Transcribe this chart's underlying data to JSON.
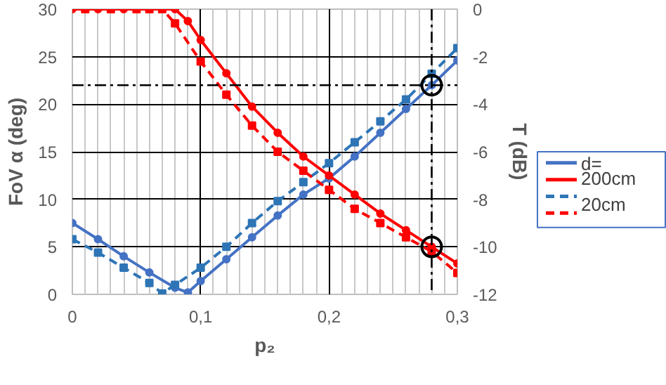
{
  "chart_data": {
    "type": "line",
    "xlabel": "p₂",
    "ylabel": "FoV α (deg)",
    "y2label": "T (dB)",
    "xlim": [
      0,
      0.3
    ],
    "xticks": [
      {
        "value": 0,
        "label": "0"
      },
      {
        "value": 0.1,
        "label": "0,1"
      },
      {
        "value": 0.2,
        "label": "0,2"
      },
      {
        "value": 0.3,
        "label": "0,3"
      }
    ],
    "ylim": [
      0,
      30
    ],
    "yticks": [
      0,
      5,
      10,
      15,
      20,
      25,
      30
    ],
    "y2lim": [
      -12,
      0
    ],
    "y2ticks": [
      0,
      -2,
      -4,
      -6,
      -8,
      -10,
      -12
    ],
    "grid": true,
    "legend": "right",
    "ref_lines": [
      {
        "axis": "y",
        "value": 22,
        "color": "#000000",
        "line_style": "dashdot"
      },
      {
        "axis": "x",
        "value": 0.28,
        "color": "#000000",
        "line_style": "dashdot"
      }
    ],
    "series": [
      {
        "name": "d= 200cm",
        "color": "#4472c4",
        "line_style": "solid",
        "marker": "circle",
        "x": [
          0,
          0.02,
          0.04,
          0.06,
          0.08,
          0.09,
          0.1,
          0.12,
          0.14,
          0.16,
          0.18,
          0.2,
          0.22,
          0.24,
          0.26,
          0.28,
          0.3
        ],
        "values": [
          7.5,
          5.8,
          4.0,
          2.3,
          0.7,
          0.2,
          1.4,
          3.7,
          6.0,
          8.3,
          10.5,
          12.2,
          14.5,
          17.0,
          19.5,
          22.0,
          24.6
        ]
      },
      {
        "color": "#ff0000",
        "axis": "y2",
        "line_style": "solid",
        "marker": "circle",
        "x": [
          0,
          0.02,
          0.04,
          0.06,
          0.08,
          0.09,
          0.1,
          0.12,
          0.14,
          0.16,
          0.18,
          0.2,
          0.22,
          0.24,
          0.26,
          0.28,
          0.3
        ],
        "values": [
          0,
          0,
          0,
          0,
          0,
          -0.5,
          -1.3,
          -2.7,
          -4.1,
          -5.2,
          -6.2,
          -7.0,
          -7.8,
          -8.6,
          -9.3,
          -10.0,
          -10.7
        ]
      },
      {
        "name": "20cm",
        "color": "#2e75b6",
        "line_style": "dashed",
        "marker": "square",
        "x": [
          0,
          0.02,
          0.04,
          0.06,
          0.07,
          0.08,
          0.1,
          0.12,
          0.14,
          0.16,
          0.18,
          0.2,
          0.22,
          0.24,
          0.26,
          0.28,
          0.3
        ],
        "values": [
          5.8,
          4.4,
          2.8,
          1.2,
          0.1,
          1.0,
          2.8,
          5.0,
          7.5,
          9.8,
          11.8,
          13.8,
          16.0,
          18.2,
          20.5,
          23.2,
          25.9
        ]
      },
      {
        "color": "#ff0000",
        "axis": "y2",
        "line_style": "dashed",
        "marker": "square",
        "x": [
          0.01,
          0.03,
          0.05,
          0.06,
          0.07,
          0.08,
          0.1,
          0.12,
          0.14,
          0.16,
          0.18,
          0.2,
          0.22,
          0.24,
          0.26,
          0.28,
          0.3
        ],
        "values": [
          0,
          0,
          0,
          0,
          0,
          -0.6,
          -2.2,
          -3.6,
          -4.9,
          -6.0,
          -6.8,
          -7.6,
          -8.4,
          -9.0,
          -9.6,
          -10.2,
          -11.1
        ]
      },
      {
        "type": "scatter",
        "color": "#000000",
        "marker": "circle",
        "x": [
          0.28,
          0.28
        ],
        "values": [
          22,
          5
        ]
      }
    ]
  }
}
